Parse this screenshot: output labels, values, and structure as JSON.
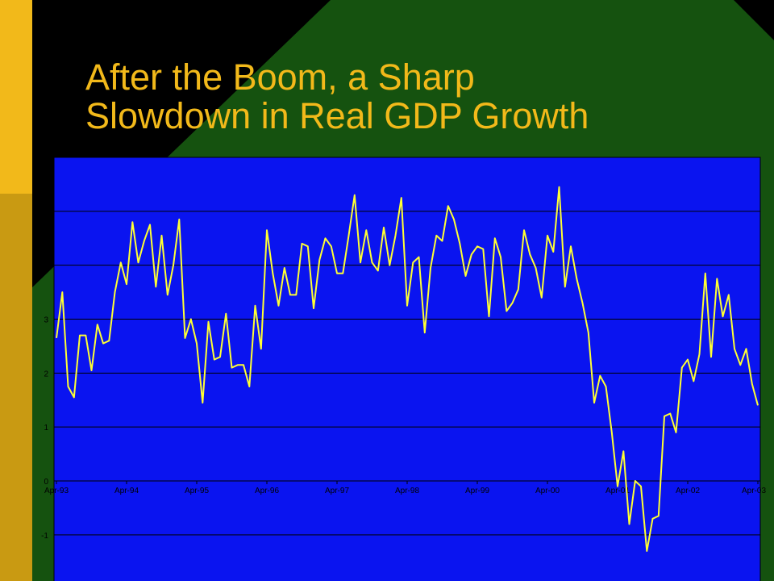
{
  "slide": {
    "title_line1": "After the Boom, a Sharp",
    "title_line2": "Slowdown in Real GDP Growth"
  },
  "colors": {
    "plot_background": "#0a14f0",
    "series_line": "#ffff33",
    "title": "#f2b91a",
    "band_gold": "#f2b91a",
    "band_gold_dark": "#c99a12",
    "green": "#15520f"
  },
  "chart_data": {
    "type": "line",
    "title": "",
    "xlabel": "",
    "ylabel": "",
    "ylim": [
      -1.8,
      6
    ],
    "yticks": [
      -1,
      0,
      1,
      2,
      3,
      4,
      5,
      6
    ],
    "x_ticks": [
      "Apr-93",
      "Apr-94",
      "Apr-95",
      "Apr-96",
      "Apr-97",
      "Apr-98",
      "Apr-99",
      "Apr-00",
      "Apr-01",
      "Apr-02",
      "Apr-03"
    ],
    "grid": true,
    "legend": "none",
    "series": [
      {
        "values": [
          2.65,
          3.5,
          1.75,
          1.55,
          2.7,
          2.7,
          2.05,
          2.9,
          2.55,
          2.6,
          3.5,
          4.05,
          3.65,
          4.8,
          4.05,
          4.45,
          4.75,
          3.6,
          4.55,
          3.45,
          4.0,
          4.85,
          2.65,
          3.0,
          2.55,
          1.45,
          2.95,
          2.25,
          2.3,
          3.1,
          2.1,
          2.15,
          2.15,
          1.75,
          3.25,
          2.45,
          4.65,
          3.85,
          3.25,
          3.95,
          3.45,
          3.45,
          4.4,
          4.35,
          3.2,
          4.1,
          4.5,
          4.35,
          3.85,
          3.85,
          4.55,
          5.3,
          4.05,
          4.65,
          4.05,
          3.9,
          4.7,
          4.0,
          4.55,
          5.25,
          3.25,
          4.05,
          4.15,
          2.75,
          3.95,
          4.55,
          4.45,
          5.1,
          4.85,
          4.4,
          3.8,
          4.2,
          4.35,
          4.3,
          3.05,
          4.5,
          4.15,
          3.15,
          3.3,
          3.55,
          4.65,
          4.2,
          3.95,
          3.4,
          4.55,
          4.25,
          5.45,
          3.6,
          4.35,
          3.75,
          3.3,
          2.75,
          1.45,
          1.95,
          1.75,
          0.9,
          -0.1,
          0.55,
          -0.8,
          0.0,
          -0.1,
          -1.3,
          -0.7,
          -0.65,
          1.2,
          1.25,
          0.9,
          2.1,
          2.25,
          1.85,
          2.35,
          3.85,
          2.3,
          3.75,
          3.05,
          3.45,
          2.45,
          2.15,
          2.45,
          1.8,
          1.4
        ]
      }
    ]
  }
}
